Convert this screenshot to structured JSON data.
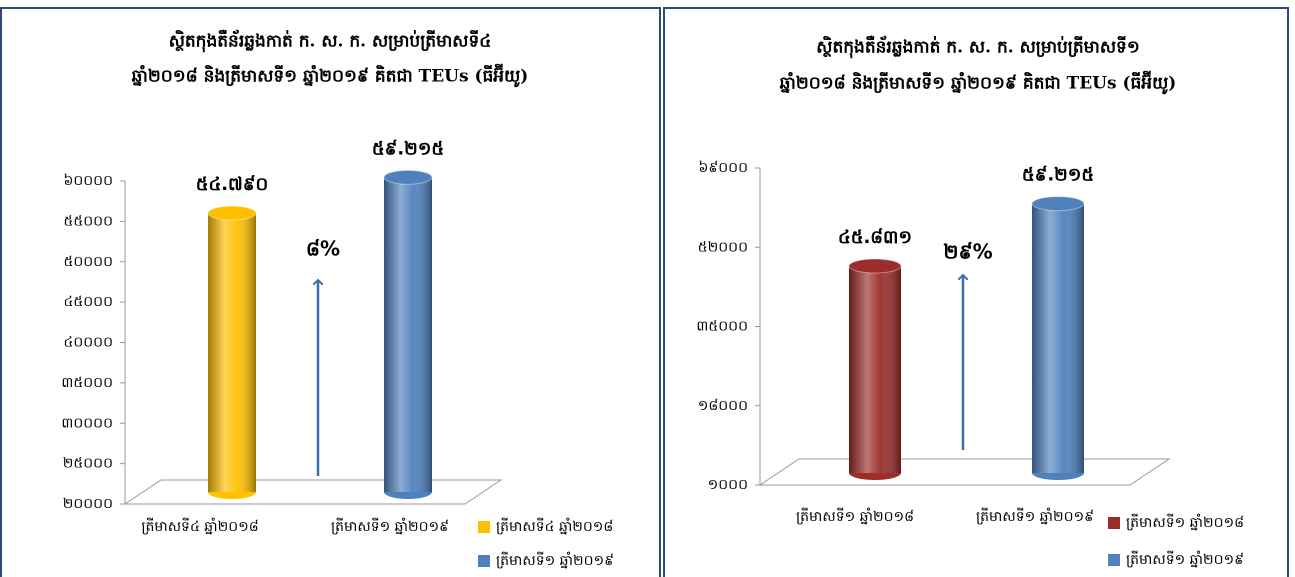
{
  "chart_data": [
    {
      "type": "bar",
      "title": [
        "ស្ថិតកុងតឺន័រឆ្លងកាត់ ក. ស. ក. សម្រាប់ត្រីមាសទី៤",
        "ឆ្នាំ២០១៨ និងត្រីមាសទី១ ឆ្នាំ២០១៩ គិតជា TEUs (ធីអ៊ីយូ)"
      ],
      "categories": [
        "ត្រីមាសទី៤ ឆ្នាំ២០១៨",
        "ត្រីមាសទី១ ឆ្នាំ២០១៩"
      ],
      "values": [
        54790,
        59215
      ],
      "value_labels": [
        "៥៤.៧៩០",
        "៥៩.២១៥"
      ],
      "colors": [
        "#ffc000",
        "#4f81bd"
      ],
      "annotation": "៨%",
      "ylim": [
        20000,
        60000
      ],
      "yticks": [
        {
          "value": 20000,
          "label": "២០០០០"
        },
        {
          "value": 25000,
          "label": "២៥០០០"
        },
        {
          "value": 30000,
          "label": "៣០០០០"
        },
        {
          "value": 35000,
          "label": "៣៥០០០"
        },
        {
          "value": 40000,
          "label": "៤០០០០"
        },
        {
          "value": 45000,
          "label": "៤៥០០០"
        },
        {
          "value": 50000,
          "label": "៥០០០០"
        },
        {
          "value": 55000,
          "label": "៥៥០០០"
        },
        {
          "value": 60000,
          "label": "៦០០០០"
        }
      ],
      "legend": "right"
    },
    {
      "type": "bar",
      "title": [
        "ស្ថិតកុងតឺន័រឆ្លងកាត់ ក. ស. ក. សម្រាប់ត្រីមាសទី១",
        "ឆ្នាំ២០១៨ និងត្រីមាសទី១ ឆ្នាំ២០១៩ គិតជា TEUs (ធីអ៊ីយូ)"
      ],
      "categories": [
        "ត្រីមាសទី១ ឆ្នាំ២០១៨",
        "ត្រីមាសទី១ ឆ្នាំ២០១៩"
      ],
      "values": [
        45831,
        59215
      ],
      "value_labels": [
        "៤៥.៨៣១",
        "៥៩.២១៥"
      ],
      "colors": [
        "#9b2d2a",
        "#4f81bd"
      ],
      "annotation": "២៩%",
      "ylim": [
        1000,
        69000
      ],
      "yticks": [
        {
          "value": 1000,
          "label": "១០០០"
        },
        {
          "value": 18000,
          "label": "១៨០០០"
        },
        {
          "value": 35000,
          "label": "៣៥០០០"
        },
        {
          "value": 52000,
          "label": "៥២០០០"
        },
        {
          "value": 69000,
          "label": "៦៩០០០"
        }
      ],
      "legend": "right"
    }
  ]
}
